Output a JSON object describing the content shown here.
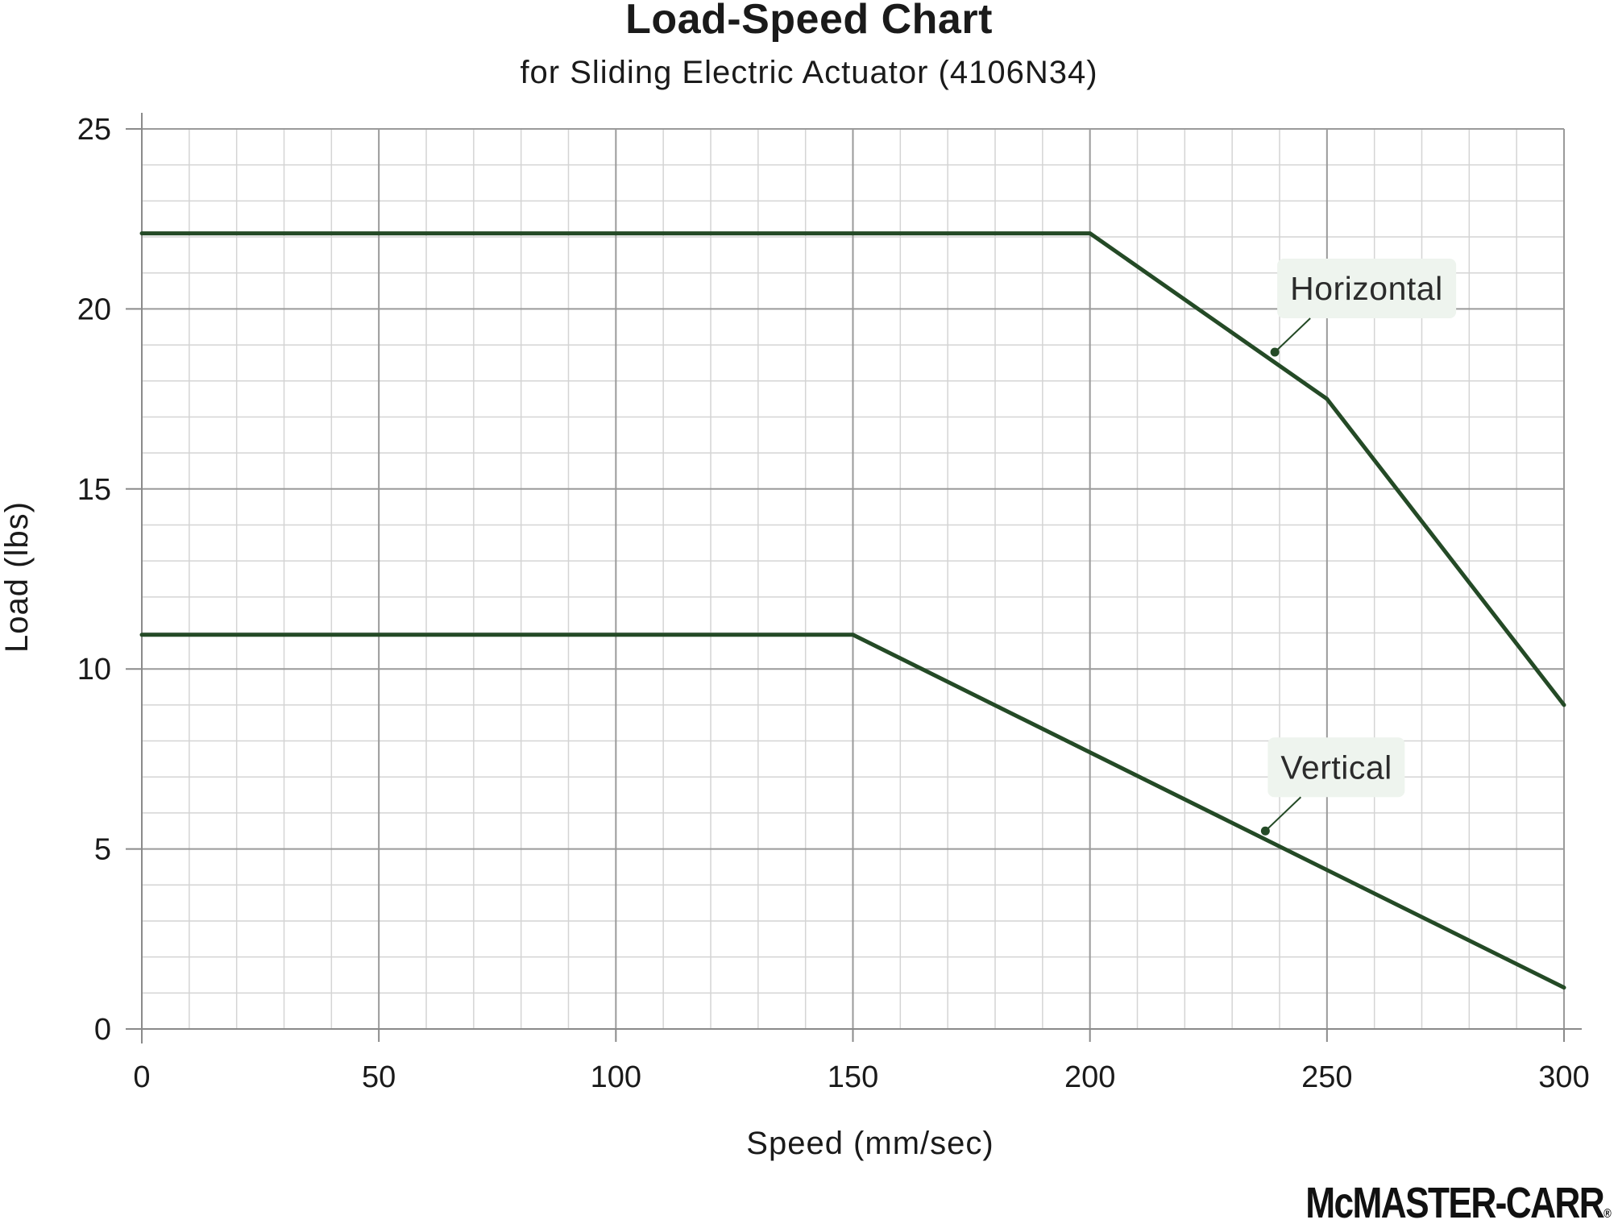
{
  "chart_data": {
    "type": "line",
    "title": "Load-Speed Chart",
    "subtitle": "for Sliding Electric Actuator (4106N34)",
    "xlabel": "Speed (mm/sec)",
    "ylabel": "Load (lbs)",
    "xlim": [
      0,
      300
    ],
    "ylim": [
      0,
      25
    ],
    "x_ticks": [
      0,
      50,
      100,
      150,
      200,
      250,
      300
    ],
    "y_ticks": [
      0,
      5,
      10,
      15,
      20,
      25
    ],
    "x_minor_step": 10,
    "y_minor_step": 1,
    "grid": true,
    "line_color": "#244a26",
    "annotation_bg": "#eef4ee",
    "series": [
      {
        "name": "Horizontal",
        "x": [
          0,
          200,
          250,
          300
        ],
        "y": [
          22.1,
          22.1,
          17.5,
          9.0
        ],
        "annotation_point": [
          239,
          18.8
        ]
      },
      {
        "name": "Vertical",
        "x": [
          0,
          150,
          300
        ],
        "y": [
          10.95,
          10.95,
          1.15
        ],
        "annotation_point": [
          237,
          5.5
        ]
      }
    ]
  },
  "brand": {
    "logo_text": "McMASTER-CARR",
    "registered": "®"
  }
}
